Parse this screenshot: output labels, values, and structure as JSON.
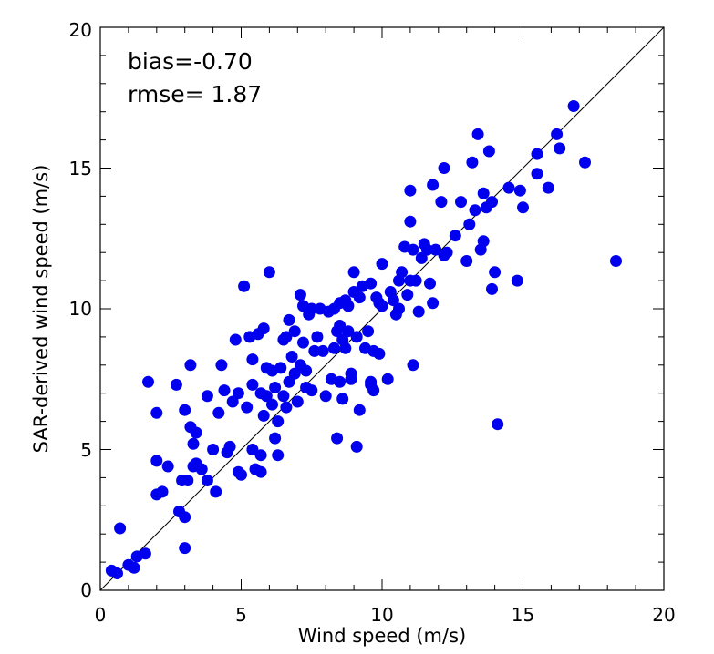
{
  "chart_data": {
    "type": "scatter",
    "xlabel": "Wind speed (m/s)",
    "ylabel": "SAR-derived wind speed (m/s)",
    "xlim": [
      0,
      20
    ],
    "ylim": [
      0,
      20
    ],
    "x_ticks": [
      "0",
      "5",
      "10",
      "15",
      "20"
    ],
    "y_ticks": [
      "0",
      "5",
      "10",
      "15",
      "20"
    ],
    "grid": false,
    "reference_line": "y = x",
    "annotations": [
      "bias=-0.70",
      "rmse= 1.87"
    ],
    "marker_color": "#0000ee",
    "series": [
      {
        "points": [
          [
            0.4,
            0.7
          ],
          [
            0.6,
            0.6
          ],
          [
            0.7,
            2.2
          ],
          [
            1.0,
            0.9
          ],
          [
            1.2,
            0.8
          ],
          [
            1.3,
            1.2
          ],
          [
            1.6,
            1.3
          ],
          [
            1.7,
            7.4
          ],
          [
            2.0,
            6.3
          ],
          [
            2.0,
            4.6
          ],
          [
            2.0,
            3.4
          ],
          [
            2.2,
            3.5
          ],
          [
            2.4,
            4.4
          ],
          [
            2.7,
            7.3
          ],
          [
            2.8,
            2.8
          ],
          [
            2.9,
            3.9
          ],
          [
            3.0,
            2.6
          ],
          [
            3.0,
            1.5
          ],
          [
            3.0,
            6.4
          ],
          [
            3.1,
            3.9
          ],
          [
            3.2,
            8.0
          ],
          [
            3.2,
            5.8
          ],
          [
            3.3,
            5.2
          ],
          [
            3.3,
            4.4
          ],
          [
            3.4,
            5.6
          ],
          [
            3.4,
            4.5
          ],
          [
            3.6,
            4.3
          ],
          [
            3.8,
            3.9
          ],
          [
            3.8,
            6.9
          ],
          [
            4.0,
            5.0
          ],
          [
            4.1,
            3.5
          ],
          [
            4.2,
            6.3
          ],
          [
            4.3,
            8.0
          ],
          [
            4.4,
            7.1
          ],
          [
            4.5,
            4.9
          ],
          [
            4.6,
            5.1
          ],
          [
            4.7,
            6.7
          ],
          [
            4.8,
            8.9
          ],
          [
            4.9,
            7.0
          ],
          [
            4.9,
            4.2
          ],
          [
            5.0,
            4.1
          ],
          [
            5.1,
            10.8
          ],
          [
            5.2,
            6.5
          ],
          [
            5.3,
            9.0
          ],
          [
            5.4,
            7.3
          ],
          [
            5.4,
            5.0
          ],
          [
            5.4,
            8.2
          ],
          [
            5.5,
            4.3
          ],
          [
            5.6,
            9.1
          ],
          [
            5.7,
            7.0
          ],
          [
            5.7,
            4.8
          ],
          [
            5.7,
            4.2
          ],
          [
            5.8,
            6.2
          ],
          [
            5.8,
            9.3
          ],
          [
            5.9,
            6.9
          ],
          [
            5.9,
            7.9
          ],
          [
            6.0,
            11.3
          ],
          [
            6.1,
            6.6
          ],
          [
            6.1,
            7.8
          ],
          [
            6.2,
            7.2
          ],
          [
            6.2,
            5.4
          ],
          [
            6.3,
            6.0
          ],
          [
            6.3,
            4.8
          ],
          [
            6.4,
            7.9
          ],
          [
            6.5,
            6.9
          ],
          [
            6.5,
            8.9
          ],
          [
            6.6,
            6.5
          ],
          [
            6.6,
            9.0
          ],
          [
            6.7,
            9.6
          ],
          [
            6.7,
            7.4
          ],
          [
            6.8,
            8.3
          ],
          [
            6.9,
            7.7
          ],
          [
            6.9,
            9.2
          ],
          [
            7.0,
            6.7
          ],
          [
            7.1,
            10.5
          ],
          [
            7.1,
            8.0
          ],
          [
            7.2,
            8.8
          ],
          [
            7.2,
            10.1
          ],
          [
            7.3,
            7.8
          ],
          [
            7.3,
            7.2
          ],
          [
            7.4,
            9.8
          ],
          [
            7.5,
            7.1
          ],
          [
            7.5,
            10.0
          ],
          [
            7.6,
            8.5
          ],
          [
            7.7,
            9.0
          ],
          [
            7.8,
            10.0
          ],
          [
            7.9,
            8.5
          ],
          [
            8.0,
            6.9
          ],
          [
            8.1,
            9.9
          ],
          [
            8.2,
            7.5
          ],
          [
            8.3,
            10.0
          ],
          [
            8.3,
            8.6
          ],
          [
            8.4,
            9.2
          ],
          [
            8.4,
            5.4
          ],
          [
            8.5,
            7.4
          ],
          [
            8.5,
            9.4
          ],
          [
            8.5,
            10.2
          ],
          [
            8.6,
            6.8
          ],
          [
            8.6,
            8.9
          ],
          [
            8.7,
            10.3
          ],
          [
            8.7,
            8.6
          ],
          [
            8.8,
            9.2
          ],
          [
            8.8,
            10.1
          ],
          [
            8.9,
            7.7
          ],
          [
            8.9,
            7.5
          ],
          [
            9.0,
            10.6
          ],
          [
            9.0,
            11.3
          ],
          [
            9.1,
            9.0
          ],
          [
            9.1,
            5.1
          ],
          [
            9.2,
            10.4
          ],
          [
            9.2,
            6.4
          ],
          [
            9.3,
            10.8
          ],
          [
            9.4,
            8.6
          ],
          [
            9.5,
            9.2
          ],
          [
            9.6,
            10.9
          ],
          [
            9.6,
            7.4
          ],
          [
            9.6,
            7.3
          ],
          [
            9.7,
            8.5
          ],
          [
            9.7,
            7.1
          ],
          [
            9.8,
            10.4
          ],
          [
            9.9,
            10.2
          ],
          [
            9.9,
            8.4
          ],
          [
            10.0,
            10.1
          ],
          [
            10.0,
            11.6
          ],
          [
            10.2,
            7.5
          ],
          [
            10.3,
            10.6
          ],
          [
            10.4,
            10.3
          ],
          [
            10.5,
            9.8
          ],
          [
            10.6,
            10.0
          ],
          [
            10.6,
            11.0
          ],
          [
            10.7,
            11.3
          ],
          [
            10.8,
            12.2
          ],
          [
            10.9,
            10.5
          ],
          [
            11.0,
            11.0
          ],
          [
            11.0,
            14.2
          ],
          [
            11.0,
            13.1
          ],
          [
            11.1,
            12.1
          ],
          [
            11.1,
            8.0
          ],
          [
            11.2,
            11.0
          ],
          [
            11.3,
            9.9
          ],
          [
            11.4,
            11.8
          ],
          [
            11.5,
            12.3
          ],
          [
            11.6,
            12.1
          ],
          [
            11.7,
            10.9
          ],
          [
            11.8,
            14.4
          ],
          [
            11.8,
            10.2
          ],
          [
            11.9,
            12.1
          ],
          [
            12.1,
            13.8
          ],
          [
            12.2,
            15.0
          ],
          [
            12.2,
            11.9
          ],
          [
            12.3,
            12.0
          ],
          [
            12.6,
            12.6
          ],
          [
            12.8,
            13.8
          ],
          [
            13.0,
            11.7
          ],
          [
            13.1,
            13.0
          ],
          [
            13.2,
            15.2
          ],
          [
            13.3,
            13.5
          ],
          [
            13.4,
            16.2
          ],
          [
            13.5,
            12.1
          ],
          [
            13.6,
            12.4
          ],
          [
            13.6,
            14.1
          ],
          [
            13.7,
            13.6
          ],
          [
            13.8,
            15.6
          ],
          [
            13.9,
            10.7
          ],
          [
            13.9,
            13.8
          ],
          [
            14.0,
            11.3
          ],
          [
            14.1,
            5.9
          ],
          [
            14.5,
            14.3
          ],
          [
            14.8,
            11.0
          ],
          [
            14.9,
            14.2
          ],
          [
            15.0,
            13.6
          ],
          [
            15.5,
            15.5
          ],
          [
            15.5,
            14.8
          ],
          [
            15.9,
            14.3
          ],
          [
            16.2,
            16.2
          ],
          [
            16.3,
            15.7
          ],
          [
            16.8,
            17.2
          ],
          [
            17.2,
            15.2
          ],
          [
            18.3,
            11.7
          ]
        ]
      }
    ]
  }
}
